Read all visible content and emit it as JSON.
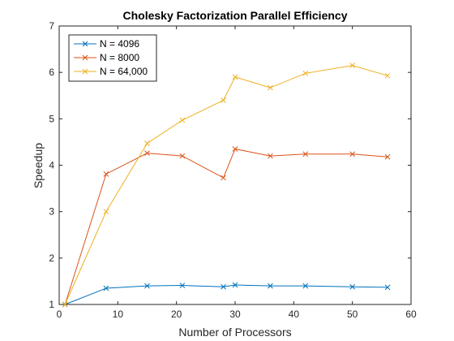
{
  "chart_data": {
    "type": "line",
    "title": "Cholesky Factorization Parallel Efficiency",
    "xlabel": "Number of Processors",
    "ylabel": "Speedup",
    "xlim": [
      0,
      60
    ],
    "ylim": [
      1,
      7
    ],
    "xticks": [
      0,
      10,
      20,
      30,
      40,
      50,
      60
    ],
    "yticks": [
      1,
      2,
      3,
      4,
      5,
      6,
      7
    ],
    "grid": false,
    "legend_position": "top-left",
    "marker": "x",
    "series": [
      {
        "name": "N = 4096",
        "color": "#0072BD",
        "x": [
          1,
          8,
          15,
          21,
          28,
          30,
          36,
          42,
          50,
          56
        ],
        "y": [
          1.0,
          1.35,
          1.4,
          1.41,
          1.38,
          1.42,
          1.4,
          1.4,
          1.38,
          1.37
        ]
      },
      {
        "name": "N = 8000",
        "color": "#D95319",
        "x": [
          1,
          8,
          15,
          21,
          28,
          30,
          36,
          42,
          50,
          56
        ],
        "y": [
          1.0,
          3.81,
          4.26,
          4.2,
          3.73,
          4.35,
          4.2,
          4.24,
          4.24,
          4.18
        ]
      },
      {
        "name": "N = 64,000",
        "color": "#EDB120",
        "x": [
          1,
          8,
          15,
          21,
          28,
          30,
          36,
          42,
          50,
          56
        ],
        "y": [
          1.0,
          3.0,
          4.47,
          4.97,
          5.4,
          5.9,
          5.67,
          5.98,
          6.15,
          5.93
        ]
      }
    ]
  }
}
